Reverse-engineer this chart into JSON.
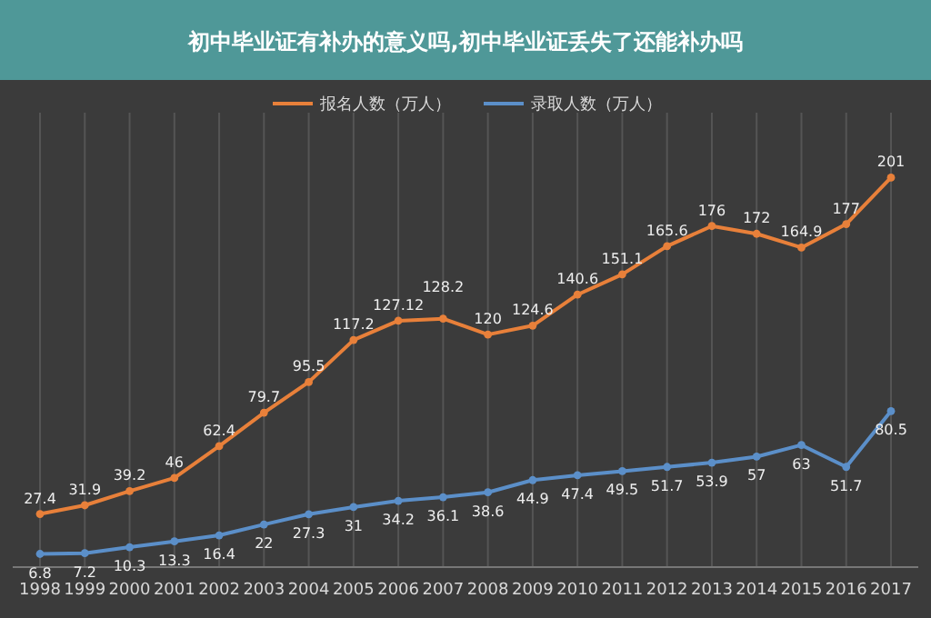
{
  "chart_data": {
    "type": "line",
    "title": "初中毕业证有补办的意义吗,初中毕业证丢失了还能补办吗",
    "categories": [
      "1998",
      "1999",
      "2000",
      "2001",
      "2002",
      "2003",
      "2004",
      "2005",
      "2006",
      "2007",
      "2008",
      "2009",
      "2010",
      "2011",
      "2012",
      "2013",
      "2014",
      "2015",
      "2016",
      "2017"
    ],
    "series": [
      {
        "name": "报名人数（万人）",
        "color": "#e8803a",
        "values": [
          27.4,
          31.9,
          39.2,
          46,
          62.4,
          79.7,
          95.5,
          117.2,
          127.12,
          128.2,
          120,
          124.6,
          140.6,
          151.1,
          165.6,
          176,
          172,
          164.9,
          177,
          201
        ]
      },
      {
        "name": "录取人数（万人）",
        "color": "#5b8fc9",
        "values": [
          6.8,
          7.2,
          10.3,
          13.3,
          16.4,
          22,
          27.3,
          31,
          34.2,
          36.1,
          38.6,
          44.9,
          47.4,
          49.5,
          51.7,
          53.9,
          57,
          63,
          51.7,
          80.5
        ]
      }
    ],
    "data_labels": true,
    "grid": "x",
    "legend": "top",
    "marker": "circle",
    "line_style": "solid"
  }
}
